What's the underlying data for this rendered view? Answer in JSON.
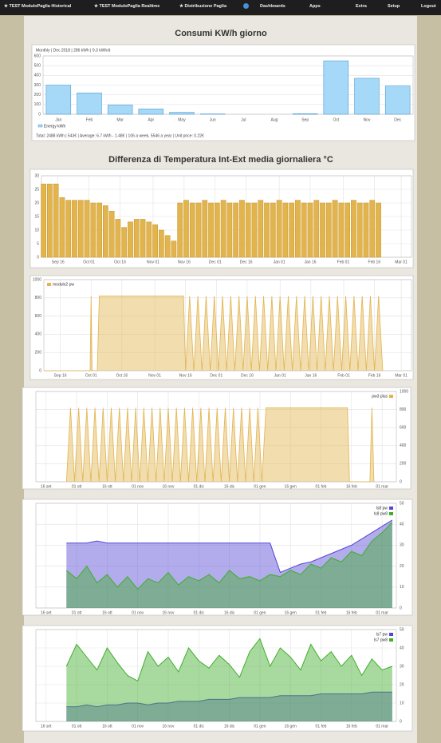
{
  "navbar": {
    "items": [
      "★ TEST ModuloPaglia Historical",
      "★ TEST ModuloPaglia Realtime",
      "★ Distribuzione Paglia",
      "Dashboards",
      "Apps",
      "Extra",
      "Setup",
      "Logout"
    ]
  },
  "chart_data": [
    {
      "type": "bar",
      "title": "Consumi KW/h giorno",
      "subtitle": "Monthly | Dec 2018 | 286 kWh | 9.3 kWh/d",
      "annotation": "Total: 2488 kWh | 543€ | Average: 6.7 kWh - 1.48€ | 106 a week, 5546 a year | Unit price: 0.22€",
      "categories": [
        "Jan",
        "Feb",
        "Mar",
        "Apr",
        "May",
        "Jun",
        "Jul",
        "Aug",
        "Sep",
        "Oct",
        "Nov",
        "Dec"
      ],
      "series": [
        {
          "name": "Energy kWh",
          "color": "#a6d8f7",
          "values": [
            300,
            220,
            95,
            55,
            20,
            3,
            0,
            0,
            5,
            550,
            370,
            290
          ]
        }
      ],
      "ylim": [
        0,
        600
      ],
      "yticks": [
        0,
        100,
        200,
        300,
        400,
        500,
        600
      ],
      "grid": true,
      "legend": "bottom"
    },
    {
      "type": "bar",
      "title": "Differenza di Temperatura Int-Ext media giornaliera °C",
      "series": [
        {
          "color": "#e2b44e",
          "x": [
            8,
            11,
            14,
            17,
            20,
            23,
            26,
            29,
            32,
            35,
            38,
            41,
            44,
            47,
            50,
            53,
            56,
            59,
            62,
            65,
            68,
            71,
            74,
            77,
            80,
            83,
            86,
            89,
            92,
            95,
            98,
            101,
            104,
            107,
            110,
            113,
            116,
            119,
            122,
            125,
            128,
            131,
            134,
            137,
            140,
            143,
            146,
            149,
            152,
            155,
            158,
            161,
            164,
            167,
            170
          ],
          "values": [
            27,
            27,
            27,
            22,
            21,
            21,
            21,
            21,
            20,
            20,
            19,
            17,
            14,
            11,
            13,
            14,
            14,
            13,
            12,
            10,
            8,
            6,
            20,
            21,
            20,
            20,
            21,
            20,
            20,
            21,
            20,
            20,
            21,
            20,
            20,
            21,
            20,
            20,
            21,
            20,
            20,
            21,
            20,
            20,
            21,
            20,
            20,
            21,
            20,
            20,
            21,
            20,
            20,
            21,
            20
          ]
        }
      ],
      "xlim": [
        7,
        186
      ],
      "xticks": [
        {
          "value": 15,
          "label": "Sep 16"
        },
        {
          "value": 30,
          "label": "Oct 01"
        },
        {
          "value": 45,
          "label": "Oct 16"
        },
        {
          "value": 61,
          "label": "Nov 01"
        },
        {
          "value": 76,
          "label": "Nov 16"
        },
        {
          "value": 91,
          "label": "Dec 01"
        },
        {
          "value": 106,
          "label": "Dec 16"
        },
        {
          "value": 122,
          "label": "Jan 01"
        },
        {
          "value": 137,
          "label": "Jan 16"
        },
        {
          "value": 153,
          "label": "Feb 01"
        },
        {
          "value": 168,
          "label": "Feb 16"
        },
        {
          "value": 181,
          "label": "Mar 01"
        }
      ],
      "ylim": [
        0,
        30
      ],
      "yticks": [
        0,
        5,
        10,
        15,
        20,
        25,
        30
      ],
      "grid": true
    },
    {
      "type": "area",
      "series": [
        {
          "name": "modulo2 pw",
          "color": "#e2b44e",
          "x": [
            7,
            29.5,
            30,
            30.5,
            33,
            34,
            75,
            76,
            78,
            80,
            82,
            84,
            86,
            88,
            90,
            92,
            94,
            96,
            98,
            100,
            102,
            104,
            106,
            108,
            110,
            112,
            114,
            116,
            118,
            120,
            122,
            124,
            126,
            128,
            130,
            132,
            134,
            136,
            138,
            140,
            142,
            144,
            146,
            148,
            150,
            152,
            154,
            156,
            158,
            160,
            162,
            164,
            166,
            168,
            170,
            172
          ],
          "values": [
            0,
            0,
            820,
            0,
            0,
            820,
            820,
            0,
            820,
            0,
            820,
            0,
            820,
            0,
            820,
            0,
            820,
            0,
            820,
            0,
            820,
            0,
            820,
            0,
            820,
            0,
            820,
            0,
            820,
            0,
            820,
            0,
            820,
            0,
            820,
            0,
            820,
            0,
            820,
            0,
            820,
            0,
            820,
            0,
            820,
            0,
            820,
            0,
            820,
            0,
            820,
            0,
            820,
            0,
            820,
            0
          ]
        }
      ],
      "xlim": [
        7,
        186
      ],
      "xticks": [
        {
          "value": 15,
          "label": "Sep 16"
        },
        {
          "value": 30,
          "label": "Oct 01"
        },
        {
          "value": 45,
          "label": "Oct 16"
        },
        {
          "value": 61,
          "label": "Nov 01"
        },
        {
          "value": 76,
          "label": "Nov 16"
        },
        {
          "value": 91,
          "label": "Dec 01"
        },
        {
          "value": 106,
          "label": "Dec 16"
        },
        {
          "value": 122,
          "label": "Jan 01"
        },
        {
          "value": 137,
          "label": "Jan 16"
        },
        {
          "value": 153,
          "label": "Feb 01"
        },
        {
          "value": 168,
          "label": "Feb 16"
        },
        {
          "value": 181,
          "label": "Mar 01"
        }
      ],
      "ylim": [
        0,
        1000
      ],
      "yticks": [
        0,
        200,
        400,
        600,
        800,
        1000
      ],
      "grid": true,
      "legend": "upper left"
    },
    {
      "type": "area",
      "series": [
        {
          "name": "pw3 plus",
          "color": "#e2b44e",
          "axis": "y2",
          "x": [
            10,
            12,
            14,
            16,
            18,
            20,
            22,
            24,
            26,
            28,
            30,
            32,
            34,
            36,
            38,
            40,
            42,
            44,
            46,
            48,
            50,
            52,
            54,
            56,
            58,
            60,
            62,
            64,
            66,
            68,
            70,
            72,
            74,
            76,
            78,
            80,
            82,
            84,
            86,
            88,
            90,
            92,
            94,
            96,
            98,
            100,
            102,
            104,
            106,
            108,
            148,
            149,
            159,
            160,
            161
          ],
          "values": [
            0,
            820,
            0,
            820,
            0,
            820,
            0,
            820,
            0,
            820,
            0,
            820,
            0,
            820,
            0,
            820,
            0,
            820,
            0,
            820,
            0,
            820,
            0,
            820,
            0,
            820,
            0,
            820,
            0,
            820,
            0,
            820,
            0,
            820,
            0,
            820,
            0,
            820,
            0,
            820,
            0,
            820,
            0,
            820,
            0,
            820,
            0,
            820,
            0,
            820,
            820,
            0,
            0,
            820,
            0
          ]
        }
      ],
      "xlim": [
        -5,
        172
      ],
      "xticks": [
        {
          "value": 0,
          "label": "16 set"
        },
        {
          "value": 15,
          "label": "01 ott"
        },
        {
          "value": 30,
          "label": "16 ott"
        },
        {
          "value": 45,
          "label": "01 nov"
        },
        {
          "value": 60,
          "label": "16 nov"
        },
        {
          "value": 75,
          "label": "01 dic"
        },
        {
          "value": 90,
          "label": "16 dic"
        },
        {
          "value": 105,
          "label": "01 gen"
        },
        {
          "value": 120,
          "label": "16 gen"
        },
        {
          "value": 135,
          "label": "01 feb"
        },
        {
          "value": 150,
          "label": "16 feb"
        },
        {
          "value": 165,
          "label": "01 mar"
        }
      ],
      "y2lim": [
        0,
        1000
      ],
      "y2ticks": [
        0,
        200,
        400,
        600,
        800,
        1000
      ],
      "grid": true,
      "legend": "upper right"
    },
    {
      "type": "line",
      "series": [
        {
          "name": "Is8 pw",
          "color": "#5546d6",
          "axis": "y2",
          "x": [
            10,
            15,
            20,
            25,
            30,
            35,
            40,
            45,
            50,
            55,
            60,
            65,
            70,
            75,
            80,
            85,
            90,
            95,
            100,
            105,
            110,
            115,
            120,
            125,
            130,
            135,
            140,
            145,
            150,
            155,
            160,
            165,
            170
          ],
          "values": [
            31,
            31,
            31,
            32,
            31,
            31,
            31,
            31,
            31,
            31,
            31,
            31,
            31,
            31,
            31,
            31,
            31,
            31,
            31,
            31,
            31,
            17,
            19,
            21,
            22,
            24,
            26,
            28,
            30,
            33,
            36,
            39,
            42
          ]
        },
        {
          "name": "Is8 pw8",
          "color": "#3fae2a",
          "axis": "y2",
          "x": [
            10,
            15,
            20,
            25,
            30,
            35,
            40,
            45,
            50,
            55,
            60,
            65,
            70,
            75,
            80,
            85,
            90,
            95,
            100,
            105,
            110,
            115,
            120,
            125,
            130,
            135,
            140,
            145,
            150,
            155,
            160,
            165,
            170
          ],
          "values": [
            18,
            14,
            20,
            12,
            16,
            10,
            15,
            9,
            14,
            12,
            17,
            11,
            15,
            13,
            16,
            12,
            18,
            14,
            15,
            13,
            16,
            15,
            18,
            16,
            21,
            19,
            24,
            22,
            27,
            25,
            32,
            36,
            41
          ]
        }
      ],
      "xlim": [
        -5,
        172
      ],
      "xticks": [
        {
          "value": 0,
          "label": "16 set"
        },
        {
          "value": 15,
          "label": "01 ott"
        },
        {
          "value": 30,
          "label": "16 ott"
        },
        {
          "value": 45,
          "label": "01 nov"
        },
        {
          "value": 60,
          "label": "16 nov"
        },
        {
          "value": 75,
          "label": "01 dic"
        },
        {
          "value": 90,
          "label": "16 dic"
        },
        {
          "value": 105,
          "label": "01 gen"
        },
        {
          "value": 120,
          "label": "16 gen"
        },
        {
          "value": 135,
          "label": "01 feb"
        },
        {
          "value": 150,
          "label": "16 feb"
        },
        {
          "value": 165,
          "label": "01 mar"
        }
      ],
      "y2lim": [
        0,
        50
      ],
      "y2ticks": [
        0,
        10,
        20,
        30,
        40,
        50
      ],
      "grid": true,
      "legend": "upper right"
    },
    {
      "type": "line",
      "series": [
        {
          "name": "Is7 pw",
          "color": "#5546d6",
          "axis": "y2",
          "x": [
            10,
            15,
            20,
            25,
            30,
            35,
            40,
            45,
            50,
            55,
            60,
            65,
            70,
            75,
            80,
            85,
            90,
            95,
            100,
            105,
            110,
            115,
            120,
            125,
            130,
            135,
            140,
            145,
            150,
            155,
            160,
            165,
            170
          ],
          "values": [
            8,
            8,
            9,
            8,
            9,
            9,
            10,
            10,
            9,
            10,
            10,
            11,
            11,
            11,
            12,
            12,
            12,
            13,
            13,
            13,
            13,
            14,
            14,
            14,
            14,
            15,
            15,
            15,
            15,
            15,
            16,
            16,
            16
          ]
        },
        {
          "name": "Is7 pw8",
          "color": "#3fae2a",
          "axis": "y2",
          "x": [
            10,
            15,
            20,
            25,
            30,
            35,
            40,
            45,
            50,
            55,
            60,
            65,
            70,
            75,
            80,
            85,
            90,
            95,
            100,
            105,
            110,
            115,
            120,
            125,
            130,
            135,
            140,
            145,
            150,
            155,
            160,
            165,
            170
          ],
          "values": [
            30,
            42,
            35,
            28,
            40,
            32,
            25,
            22,
            38,
            30,
            35,
            27,
            40,
            33,
            29,
            36,
            31,
            24,
            38,
            45,
            30,
            40,
            35,
            28,
            42,
            33,
            38,
            30,
            36,
            25,
            34,
            28,
            30
          ]
        }
      ],
      "xlim": [
        -5,
        172
      ],
      "xticks": [
        {
          "value": 0,
          "label": "16 set"
        },
        {
          "value": 15,
          "label": "01 ott"
        },
        {
          "value": 30,
          "label": "16 ott"
        },
        {
          "value": 45,
          "label": "01 nov"
        },
        {
          "value": 60,
          "label": "16 nov"
        },
        {
          "value": 75,
          "label": "01 dic"
        },
        {
          "value": 90,
          "label": "16 dic"
        },
        {
          "value": 105,
          "label": "01 gen"
        },
        {
          "value": 120,
          "label": "16 gen"
        },
        {
          "value": 135,
          "label": "01 feb"
        },
        {
          "value": 150,
          "label": "16 feb"
        },
        {
          "value": 165,
          "label": "01 mar"
        }
      ],
      "y2lim": [
        0,
        50
      ],
      "y2ticks": [
        0,
        10,
        20,
        30,
        40,
        50
      ],
      "grid": true,
      "legend": "upper right"
    }
  ]
}
